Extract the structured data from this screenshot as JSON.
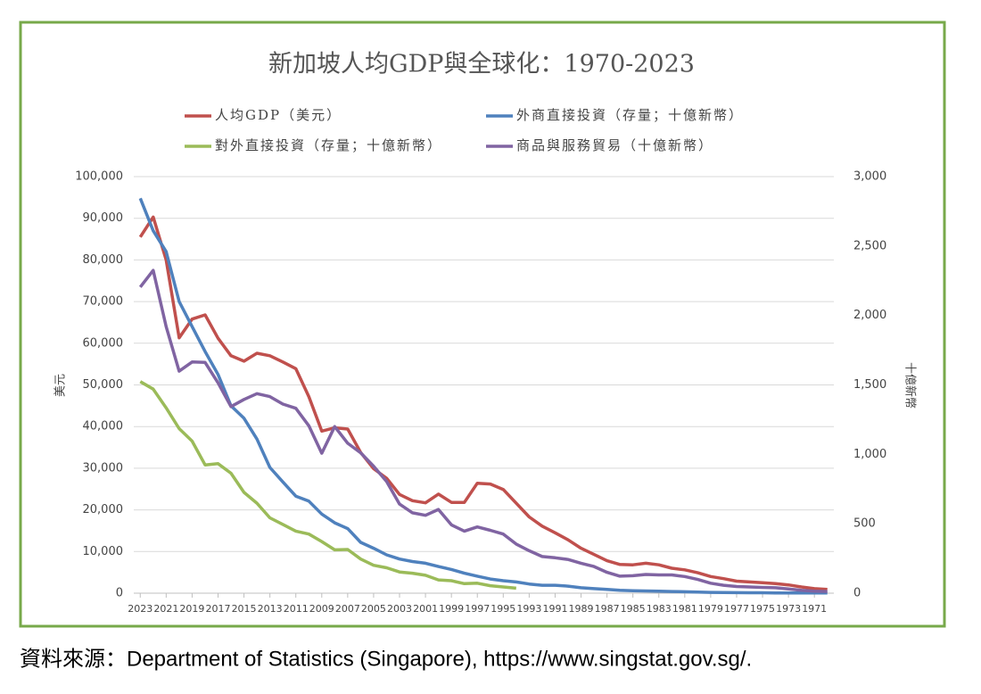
{
  "chart_data": {
    "type": "line",
    "title": "新加坡人均GDP與全球化：1970-2023",
    "ylabel": "美元",
    "y2label": "十億新幣",
    "source": "資料來源：Department of Statistics (Singapore), https://www.singstat.gov.sg/.",
    "x": [
      2023,
      2022,
      2021,
      2020,
      2019,
      2018,
      2017,
      2016,
      2015,
      2014,
      2013,
      2012,
      2011,
      2010,
      2009,
      2008,
      2007,
      2006,
      2005,
      2004,
      2003,
      2002,
      2001,
      2000,
      1999,
      1998,
      1997,
      1996,
      1995,
      1994,
      1993,
      1992,
      1991,
      1990,
      1989,
      1988,
      1987,
      1986,
      1985,
      1984,
      1983,
      1982,
      1981,
      1980,
      1979,
      1978,
      1977,
      1976,
      1975,
      1974,
      1973,
      1972,
      1971,
      1970
    ],
    "xlim": [
      2023.5,
      1969.5
    ],
    "xticks": [
      2023,
      2021,
      2019,
      2017,
      2015,
      2013,
      2011,
      2009,
      2007,
      2005,
      2003,
      2001,
      1999,
      1997,
      1995,
      1993,
      1991,
      1989,
      1987,
      1985,
      1983,
      1981,
      1979,
      1977,
      1975,
      1973,
      1971
    ],
    "ylim": [
      0,
      100000
    ],
    "yticks": [
      0,
      {
        "value": 10000,
        "label": "10,000"
      },
      {
        "value": 20000,
        "label": "20,000"
      },
      {
        "value": 30000,
        "label": "30,000"
      },
      {
        "value": 40000,
        "label": "40,000"
      },
      {
        "value": 50000,
        "label": "50,000"
      },
      {
        "value": 60000,
        "label": "60,000"
      },
      {
        "value": 70000,
        "label": "70,000"
      },
      {
        "value": 80000,
        "label": "80,000"
      },
      {
        "value": 90000,
        "label": "90,000"
      },
      {
        "value": 100000,
        "label": "100,000"
      }
    ],
    "y2lim": [
      0,
      3000
    ],
    "y2ticks": [
      0,
      500,
      {
        "value": 1000,
        "label": "1,000"
      },
      {
        "value": 1500,
        "label": "1,500"
      },
      {
        "value": 2000,
        "label": "2,000"
      },
      {
        "value": 2500,
        "label": "2,500"
      },
      {
        "value": 3000,
        "label": "3,000"
      }
    ],
    "grid": true,
    "series": [
      {
        "name": "人均GDP（美元）",
        "color": "#c0504d",
        "axis": "y",
        "values": [
          85500,
          90300,
          80000,
          61300,
          65800,
          66800,
          61200,
          57000,
          55700,
          57600,
          57000,
          55500,
          53900,
          47200,
          38900,
          39700,
          39400,
          33800,
          29900,
          27600,
          23700,
          22200,
          21700,
          23800,
          21800,
          21800,
          26400,
          26200,
          24900,
          21600,
          18300,
          16100,
          14500,
          12800,
          10800,
          9300,
          7800,
          6900,
          6800,
          7200,
          6800,
          6000,
          5600,
          4900,
          4000,
          3500,
          2900,
          2700,
          2500,
          2300,
          2000,
          1500,
          1100,
          900
        ]
      },
      {
        "name": "外商直接投資（存量；十億新幣）",
        "color": "#4f81bd",
        "axis": "y2",
        "values": [
          2844,
          2610,
          2460,
          2100,
          1920,
          1740,
          1575,
          1350,
          1260,
          1110,
          906,
          801,
          699,
          663,
          570,
          507,
          465,
          366,
          324,
          276,
          246,
          228,
          216,
          192,
          171,
          144,
          123,
          102,
          90,
          81,
          66,
          57,
          57,
          51,
          39,
          33,
          27,
          21,
          18,
          16,
          15,
          12,
          10,
          8,
          6,
          5,
          4,
          3,
          3,
          2,
          2,
          1,
          1,
          1
        ]
      },
      {
        "name": "對外直接投資（存量；十億新幣）",
        "color": "#9bbb59",
        "axis": "y2",
        "values": [
          1524,
          1470,
          1335,
          1185,
          1095,
          924,
          933,
          864,
          726,
          648,
          543,
          495,
          447,
          426,
          372,
          312,
          315,
          246,
          201,
          183,
          153,
          144,
          129,
          96,
          90,
          69,
          72,
          54,
          45,
          36,
          null,
          null,
          null,
          null,
          null,
          null,
          null,
          null,
          null,
          null,
          null,
          null,
          null,
          null,
          null,
          null,
          null,
          null,
          null,
          null,
          null,
          null,
          null,
          null
        ]
      },
      {
        "name": "商品與服務貿易（十億新幣）",
        "color": "#8064a2",
        "axis": "y2",
        "values": [
          2205,
          2325,
          1920,
          1599,
          1665,
          1662,
          1515,
          1344,
          1395,
          1437,
          1416,
          1362,
          1332,
          1206,
          1008,
          1200,
          1080,
          1011,
          915,
          804,
          642,
          579,
          561,
          603,
          492,
          447,
          477,
          453,
          426,
          354,
          306,
          264,
          255,
          243,
          216,
          192,
          150,
          123,
          126,
          135,
          132,
          132,
          120,
          99,
          72,
          57,
          48,
          45,
          42,
          39,
          30,
          21,
          15,
          12
        ]
      }
    ]
  }
}
